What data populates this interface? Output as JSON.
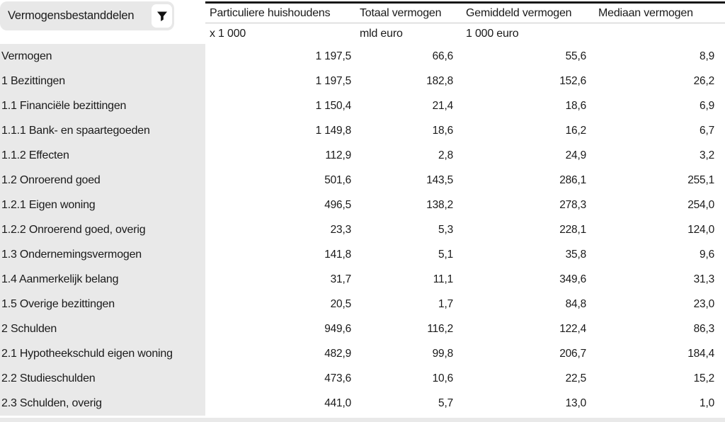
{
  "filter_bar": {
    "label": "Vermogensbestanddelen",
    "icon": "filter-funnel-icon"
  },
  "table": {
    "columns": [
      {
        "label": "Particuliere huishoudens",
        "unit": "x 1 000"
      },
      {
        "label": "Totaal vermogen",
        "unit": "mld euro"
      },
      {
        "label": "Gemiddeld vermogen",
        "unit": "1 000 euro"
      },
      {
        "label": "Mediaan vermogen",
        "unit": ""
      }
    ],
    "rows": [
      {
        "label": "Vermogen",
        "values": [
          "1 197,5",
          "66,6",
          "55,6",
          "8,9"
        ]
      },
      {
        "label": "1 Bezittingen",
        "values": [
          "1 197,5",
          "182,8",
          "152,6",
          "26,2"
        ]
      },
      {
        "label": "1.1 Financiële bezittingen",
        "values": [
          "1 150,4",
          "21,4",
          "18,6",
          "6,9"
        ]
      },
      {
        "label": "1.1.1 Bank- en spaartegoeden",
        "values": [
          "1 149,8",
          "18,6",
          "16,2",
          "6,7"
        ]
      },
      {
        "label": "1.1.2 Effecten",
        "values": [
          "112,9",
          "2,8",
          "24,9",
          "3,2"
        ]
      },
      {
        "label": "1.2 Onroerend goed",
        "values": [
          "501,6",
          "143,5",
          "286,1",
          "255,1"
        ]
      },
      {
        "label": "1.2.1 Eigen woning",
        "values": [
          "496,5",
          "138,2",
          "278,3",
          "254,0"
        ]
      },
      {
        "label": "1.2.2 Onroerend goed, overig",
        "values": [
          "23,3",
          "5,3",
          "228,1",
          "124,0"
        ]
      },
      {
        "label": "1.3 Ondernemingsvermogen",
        "values": [
          "141,8",
          "5,1",
          "35,8",
          "9,6"
        ]
      },
      {
        "label": "1.4 Aanmerkelijk belang",
        "values": [
          "31,7",
          "11,1",
          "349,6",
          "31,3"
        ]
      },
      {
        "label": "1.5 Overige bezittingen",
        "values": [
          "20,5",
          "1,7",
          "84,8",
          "23,0"
        ]
      },
      {
        "label": "2 Schulden",
        "values": [
          "949,6",
          "116,2",
          "122,4",
          "86,3"
        ]
      },
      {
        "label": "2.1 Hypotheekschuld eigen woning",
        "values": [
          "482,9",
          "99,8",
          "206,7",
          "184,4"
        ]
      },
      {
        "label": "2.2 Studieschulden",
        "values": [
          "473,6",
          "10,6",
          "22,5",
          "15,2"
        ]
      },
      {
        "label": "2.3 Schulden, overig",
        "values": [
          "441,0",
          "5,7",
          "13,0",
          "1,0"
        ]
      }
    ]
  },
  "colors": {
    "row_header_bg": "#e9e9e9",
    "pill_bg": "#e8e8e8",
    "top_border": "#161616",
    "separator": "#c9c9c9",
    "text": "#1a1a1a"
  }
}
